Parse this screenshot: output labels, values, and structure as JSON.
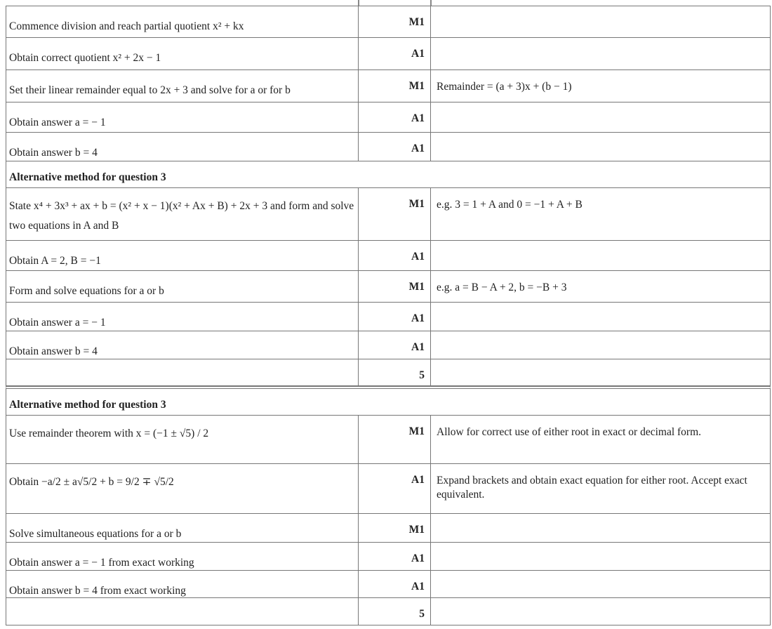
{
  "rows": [
    {
      "text": "Commence division and reach partial quotient x² + kx",
      "mark": "M1",
      "note": ""
    },
    {
      "text": "Obtain correct quotient x² + 2x − 1",
      "mark": "A1",
      "note": ""
    },
    {
      "text": "Set their linear remainder equal to 2x + 3 and solve for a or for b",
      "mark": "M1",
      "note": "Remainder = (a + 3)x + (b − 1)"
    },
    {
      "text": "Obtain answer a = − 1",
      "mark": "A1",
      "note": ""
    },
    {
      "text": "Obtain answer b = 4",
      "mark": "A1",
      "note": ""
    },
    {
      "header": "Alternative method for question 3"
    },
    {
      "text": "State x⁴ + 3x³ + ax + b = (x² + x − 1)(x² + Ax + B) + 2x + 3 and form and solve two equations in A and B",
      "mark": "M1",
      "note": "e.g. 3 = 1 + A and 0 = −1 + A + B"
    },
    {
      "text": "Obtain A = 2, B = −1",
      "mark": "A1",
      "note": ""
    },
    {
      "text": "Form and solve equations for a or b",
      "mark": "M1",
      "note": "e.g. a = B − A + 2,   b = −B + 3"
    },
    {
      "text": "Obtain answer a = − 1",
      "mark": "A1",
      "note": ""
    },
    {
      "text": "Obtain answer b = 4",
      "mark": "A1",
      "note": ""
    },
    {
      "text": "",
      "mark": "5",
      "note": ""
    },
    {
      "header": "Alternative method for question 3"
    },
    {
      "text": "Use remainder theorem with x = (−1 ± √5) / 2",
      "mark": "M1",
      "note": "Allow for correct use of either root in exact or decimal form."
    },
    {
      "text": "Obtain −a/2 ± a√5/2 + b = 9/2 ∓ √5/2",
      "mark": "A1",
      "note": "Expand brackets and obtain exact equation for either root. Accept exact equivalent."
    },
    {
      "text": "Solve simultaneous equations for a or b",
      "mark": "M1",
      "note": ""
    },
    {
      "text": "Obtain answer a = − 1 from exact working",
      "mark": "A1",
      "note": ""
    },
    {
      "text": "Obtain answer b = 4 from exact working",
      "mark": "A1",
      "note": ""
    },
    {
      "text": "",
      "mark": "5",
      "note": ""
    }
  ]
}
